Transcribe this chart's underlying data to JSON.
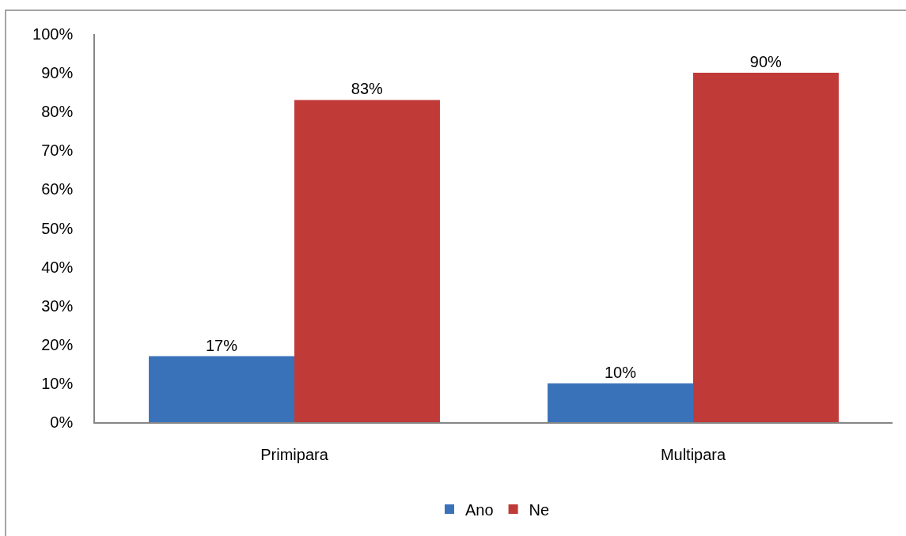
{
  "chart_data": {
    "type": "bar",
    "categories": [
      "Primipara",
      "Multipara"
    ],
    "series": [
      {
        "name": "Ano",
        "color": "#3a72ba",
        "values": [
          17,
          10
        ],
        "value_labels": [
          "17%",
          "10%"
        ]
      },
      {
        "name": "Ne",
        "color": "#c03a38",
        "values": [
          83,
          90
        ],
        "value_labels": [
          "83%",
          "90%"
        ]
      }
    ],
    "ylim": [
      0,
      100
    ],
    "yticks": [
      {
        "value": 0,
        "label": "0%"
      },
      {
        "value": 10,
        "label": "10%"
      },
      {
        "value": 20,
        "label": "20%"
      },
      {
        "value": 30,
        "label": "30%"
      },
      {
        "value": 40,
        "label": "40%"
      },
      {
        "value": 50,
        "label": "50%"
      },
      {
        "value": 60,
        "label": "60%"
      },
      {
        "value": 70,
        "label": "70%"
      },
      {
        "value": 80,
        "label": "80%"
      },
      {
        "value": 90,
        "label": "90%"
      },
      {
        "value": 100,
        "label": "100%"
      }
    ],
    "legend": "bottom"
  }
}
